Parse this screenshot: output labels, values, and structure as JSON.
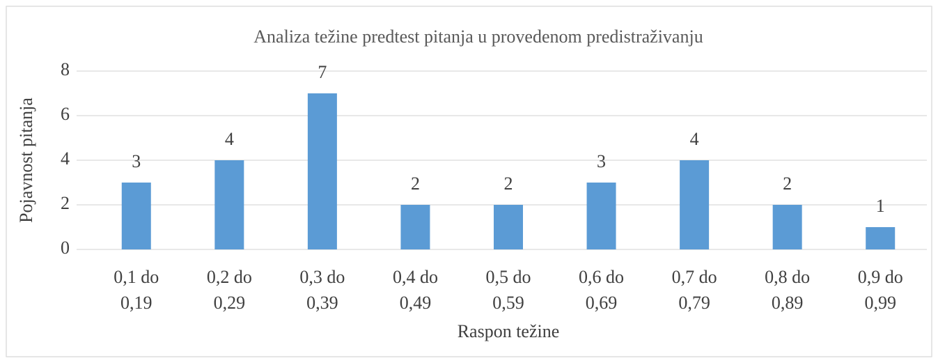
{
  "chart_data": {
    "type": "bar",
    "title": "Analiza težine predtest pitanja u provedenom predistraživanju",
    "x_label": "Raspon težine",
    "y_label": "Pojavnost pitanja",
    "categories": [
      "0,1 do 0,19",
      "0,2 do 0,29",
      "0,3 do 0,39",
      "0,4 do 0,49",
      "0,5 do 0,59",
      "0,6 do 0,69",
      "0,7 do 0,79",
      "0,8 do 0,89",
      "0,9 do 0,99"
    ],
    "values": [
      3,
      4,
      7,
      2,
      2,
      3,
      4,
      2,
      1
    ],
    "color": "#5b9bd5",
    "ylim": [
      0,
      8
    ],
    "yticks": [
      0,
      2,
      4,
      6,
      8
    ],
    "grid": true
  }
}
